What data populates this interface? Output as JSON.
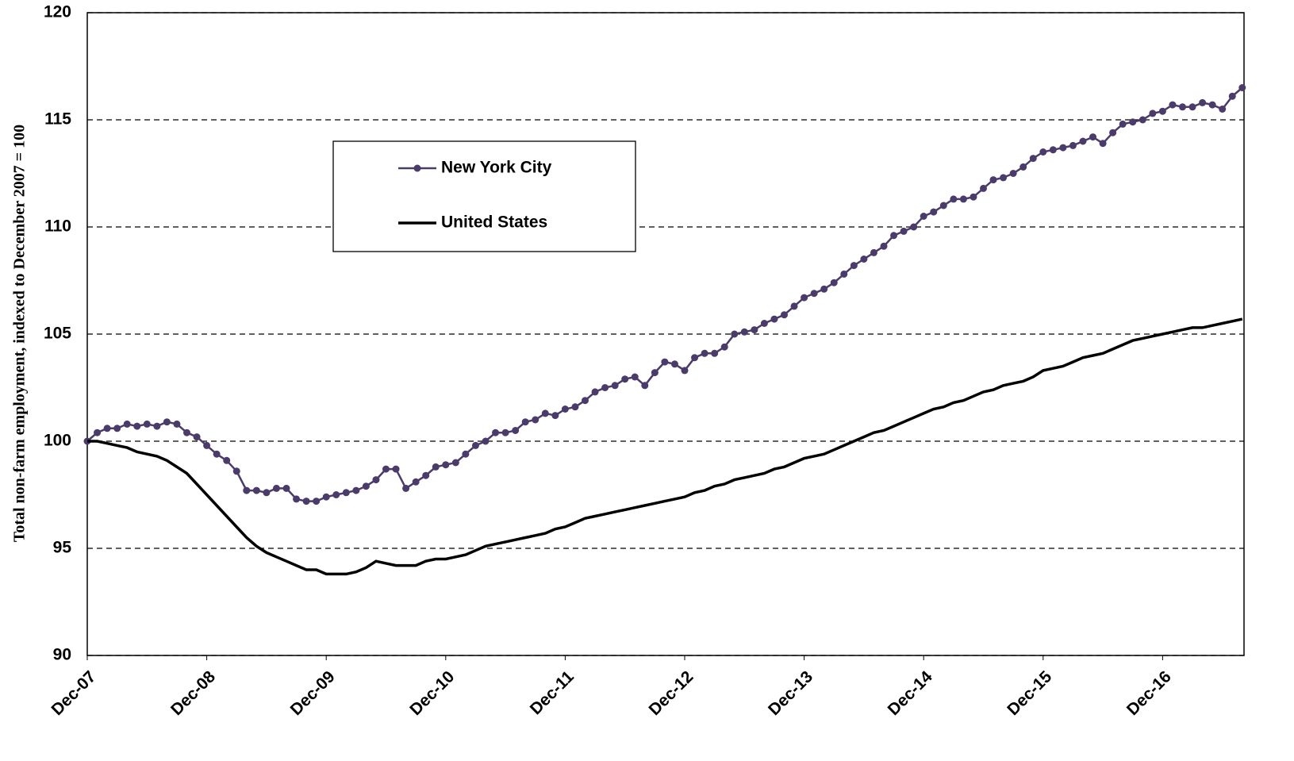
{
  "chart_data": {
    "type": "line",
    "y_axis_label": "Total non-farm employment, indexed to December 2007 = 100",
    "categories": [
      "Dec-07",
      null,
      null,
      null,
      null,
      null,
      null,
      null,
      null,
      null,
      null,
      null,
      "Dec-08",
      null,
      null,
      null,
      null,
      null,
      null,
      null,
      null,
      null,
      null,
      null,
      "Dec-09",
      null,
      null,
      null,
      null,
      null,
      null,
      null,
      null,
      null,
      null,
      null,
      "Dec-10",
      null,
      null,
      null,
      null,
      null,
      null,
      null,
      null,
      null,
      null,
      null,
      "Dec-11",
      null,
      null,
      null,
      null,
      null,
      null,
      null,
      null,
      null,
      null,
      null,
      "Dec-12",
      null,
      null,
      null,
      null,
      null,
      null,
      null,
      null,
      null,
      null,
      null,
      "Dec-13",
      null,
      null,
      null,
      null,
      null,
      null,
      null,
      null,
      null,
      null,
      null,
      "Dec-14",
      null,
      null,
      null,
      null,
      null,
      null,
      null,
      null,
      null,
      null,
      null,
      "Dec-15",
      null,
      null,
      null,
      null,
      null,
      null,
      null,
      null,
      null,
      null,
      null,
      "Dec-16",
      null,
      null,
      null,
      null,
      null,
      null,
      null,
      null
    ],
    "series": [
      {
        "name": "New York City",
        "color": "#4b3b6b",
        "marker": true,
        "values": [
          100,
          100.4,
          100.6,
          100.6,
          100.8,
          100.7,
          100.8,
          100.7,
          100.9,
          100.8,
          100.4,
          100.2,
          99.8,
          99.4,
          99.1,
          98.6,
          97.7,
          97.7,
          97.6,
          97.8,
          97.8,
          97.3,
          97.2,
          97.2,
          97.4,
          97.5,
          97.6,
          97.7,
          97.9,
          98.2,
          98.7,
          98.7,
          97.8,
          98.1,
          98.4,
          98.8,
          98.9,
          99.0,
          99.4,
          99.8,
          100.0,
          100.4,
          100.4,
          100.5,
          100.9,
          101.0,
          101.3,
          101.2,
          101.5,
          101.6,
          101.9,
          102.3,
          102.5,
          102.6,
          102.9,
          103.0,
          102.6,
          103.2,
          103.7,
          103.6,
          103.3,
          103.9,
          104.1,
          104.1,
          104.4,
          105.0,
          105.1,
          105.2,
          105.5,
          105.7,
          105.9,
          106.3,
          106.7,
          106.9,
          107.1,
          107.4,
          107.8,
          108.2,
          108.5,
          108.8,
          109.1,
          109.6,
          109.8,
          110.0,
          110.5,
          110.7,
          111.0,
          111.3,
          111.3,
          111.4,
          111.8,
          112.2,
          112.3,
          112.5,
          112.8,
          113.2,
          113.5,
          113.6,
          113.7,
          113.8,
          114.0,
          114.2,
          113.9,
          114.4,
          114.8,
          114.9,
          115.0,
          115.3,
          115.4,
          115.7,
          115.6,
          115.6,
          115.8,
          115.7,
          115.5,
          116.1,
          116.5
        ]
      },
      {
        "name": "United States",
        "color": "#000000",
        "marker": false,
        "values": [
          100,
          100.0,
          99.9,
          99.8,
          99.7,
          99.5,
          99.4,
          99.3,
          99.1,
          98.8,
          98.5,
          98.0,
          97.5,
          97.0,
          96.5,
          96.0,
          95.5,
          95.1,
          94.8,
          94.6,
          94.4,
          94.2,
          94.0,
          94.0,
          93.8,
          93.8,
          93.8,
          93.9,
          94.1,
          94.4,
          94.3,
          94.2,
          94.2,
          94.2,
          94.4,
          94.5,
          94.5,
          94.6,
          94.7,
          94.9,
          95.1,
          95.2,
          95.3,
          95.4,
          95.5,
          95.6,
          95.7,
          95.9,
          96.0,
          96.2,
          96.4,
          96.5,
          96.6,
          96.7,
          96.8,
          96.9,
          97.0,
          97.1,
          97.2,
          97.3,
          97.4,
          97.6,
          97.7,
          97.9,
          98.0,
          98.2,
          98.3,
          98.4,
          98.5,
          98.7,
          98.8,
          99.0,
          99.2,
          99.3,
          99.4,
          99.6,
          99.8,
          100.0,
          100.2,
          100.4,
          100.5,
          100.7,
          100.9,
          101.1,
          101.3,
          101.5,
          101.6,
          101.8,
          101.9,
          102.1,
          102.3,
          102.4,
          102.6,
          102.7,
          102.8,
          103.0,
          103.3,
          103.4,
          103.5,
          103.7,
          103.9,
          104.0,
          104.1,
          104.3,
          104.5,
          104.7,
          104.8,
          104.9,
          105.0,
          105.1,
          105.2,
          105.3,
          105.3,
          105.4,
          105.5,
          105.6,
          105.7
        ]
      }
    ],
    "ylim": [
      90,
      120
    ],
    "yticks": [
      90,
      95,
      100,
      105,
      110,
      115,
      120
    ],
    "grid": true
  }
}
